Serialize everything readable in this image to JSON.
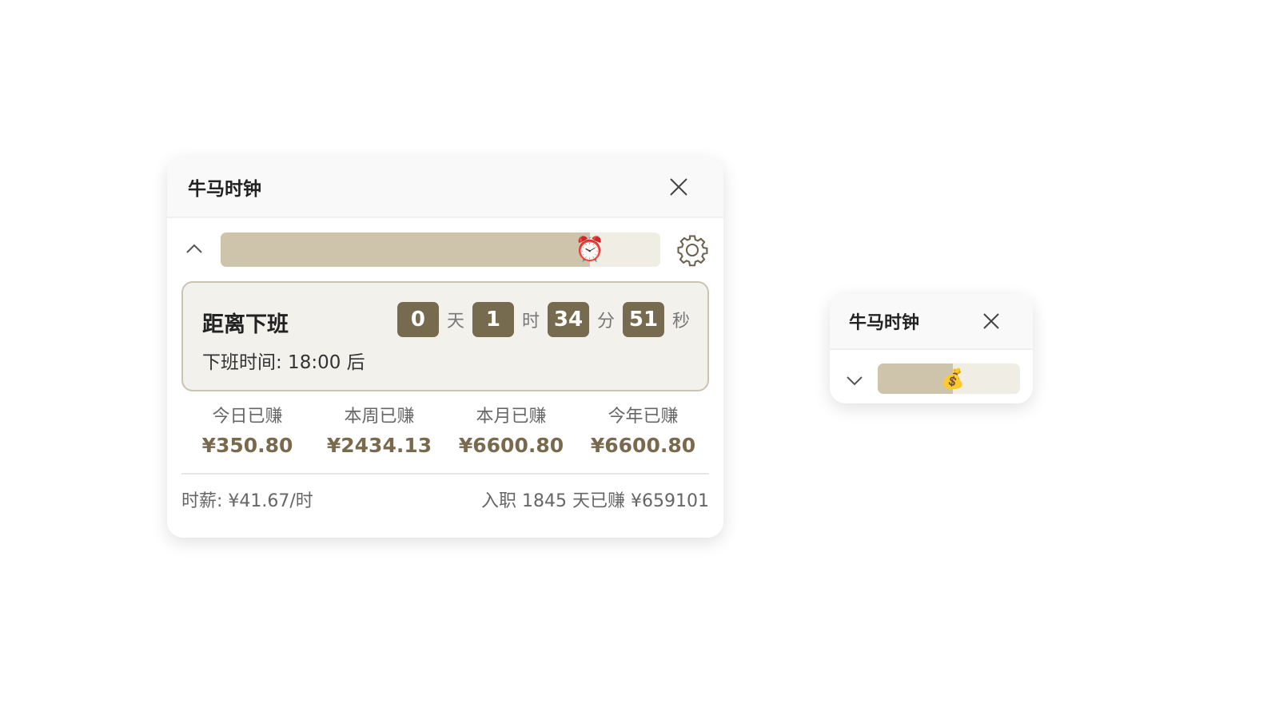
{
  "main": {
    "title": "牛马时钟",
    "progress": 0.84,
    "progress_icon": "alarm-clock-icon",
    "countdown_label": "距离下班",
    "countdown": [
      {
        "value": "0",
        "unit": "天"
      },
      {
        "value": "1",
        "unit": "时"
      },
      {
        "value": "34",
        "unit": "分"
      },
      {
        "value": "51",
        "unit": "秒"
      }
    ],
    "off_time": "下班时间: 18:00 后",
    "stats": [
      {
        "label": "今日已赚",
        "value": "¥350.80"
      },
      {
        "label": "本周已赚",
        "value": "¥2434.13"
      },
      {
        "label": "本月已赚",
        "value": "¥6600.80"
      },
      {
        "label": "今年已赚",
        "value": "¥6600.80"
      }
    ],
    "hourly": "时薪: ¥41.67/时",
    "tenure": "入职 1845 天已赚 ¥659101"
  },
  "mini": {
    "title": "牛马时钟",
    "progress": 0.53,
    "progress_icon": "money-bag-icon"
  },
  "colors": {
    "accent": "#766a4f",
    "bar_fill": "#cdc4ab",
    "bar_track": "#f0ede4"
  }
}
